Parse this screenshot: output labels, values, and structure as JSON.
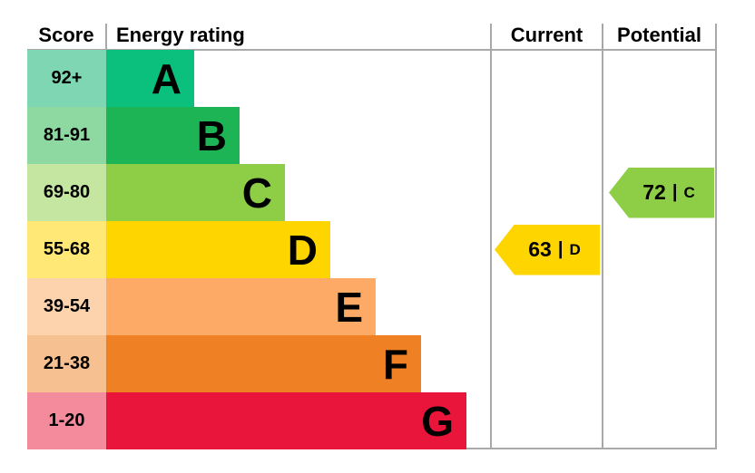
{
  "header": {
    "score": "Score",
    "energy_rating": "Energy rating",
    "current": "Current",
    "potential": "Potential"
  },
  "bands": [
    {
      "score": "92+",
      "letter": "A",
      "bar_color": "#0bbf7d",
      "tint_color": "#7fd6b2"
    },
    {
      "score": "81-91",
      "letter": "B",
      "bar_color": "#1cb454",
      "tint_color": "#8ed9a2"
    },
    {
      "score": "69-80",
      "letter": "C",
      "bar_color": "#8dce46",
      "tint_color": "#c4e6a0"
    },
    {
      "score": "55-68",
      "letter": "D",
      "bar_color": "#ffd500",
      "tint_color": "#ffe876"
    },
    {
      "score": "39-54",
      "letter": "E",
      "bar_color": "#fcaa65",
      "tint_color": "#fdd3ae"
    },
    {
      "score": "21-38",
      "letter": "F",
      "bar_color": "#ef8023",
      "tint_color": "#f6c090"
    },
    {
      "score": "1-20",
      "letter": "G",
      "bar_color": "#e9153b",
      "tint_color": "#f48b9c"
    }
  ],
  "current": {
    "value": "63",
    "separator": "|",
    "letter": "D",
    "color": "#ffd500",
    "band_index": 3
  },
  "potential": {
    "value": "72",
    "separator": "|",
    "letter": "C",
    "color": "#8dce46",
    "band_index": 2
  },
  "chart_data": {
    "type": "bar",
    "title": "Energy rating (EPC)",
    "categories": [
      "A",
      "B",
      "C",
      "D",
      "E",
      "F",
      "G"
    ],
    "score_ranges": [
      "92+",
      "81-91",
      "69-80",
      "55-68",
      "39-54",
      "21-38",
      "1-20"
    ],
    "band_colors": [
      "#0bbf7d",
      "#1cb454",
      "#8dce46",
      "#ffd500",
      "#fcaa65",
      "#ef8023",
      "#e9153b"
    ],
    "bar_relative_widths": [
      97,
      148,
      196,
      248,
      300,
      348,
      398
    ],
    "current": {
      "value": 63,
      "band": "D"
    },
    "potential": {
      "value": 72,
      "band": "C"
    },
    "columns": [
      "Score",
      "Energy rating",
      "Current",
      "Potential"
    ],
    "legend_position": "none",
    "grid": false
  }
}
